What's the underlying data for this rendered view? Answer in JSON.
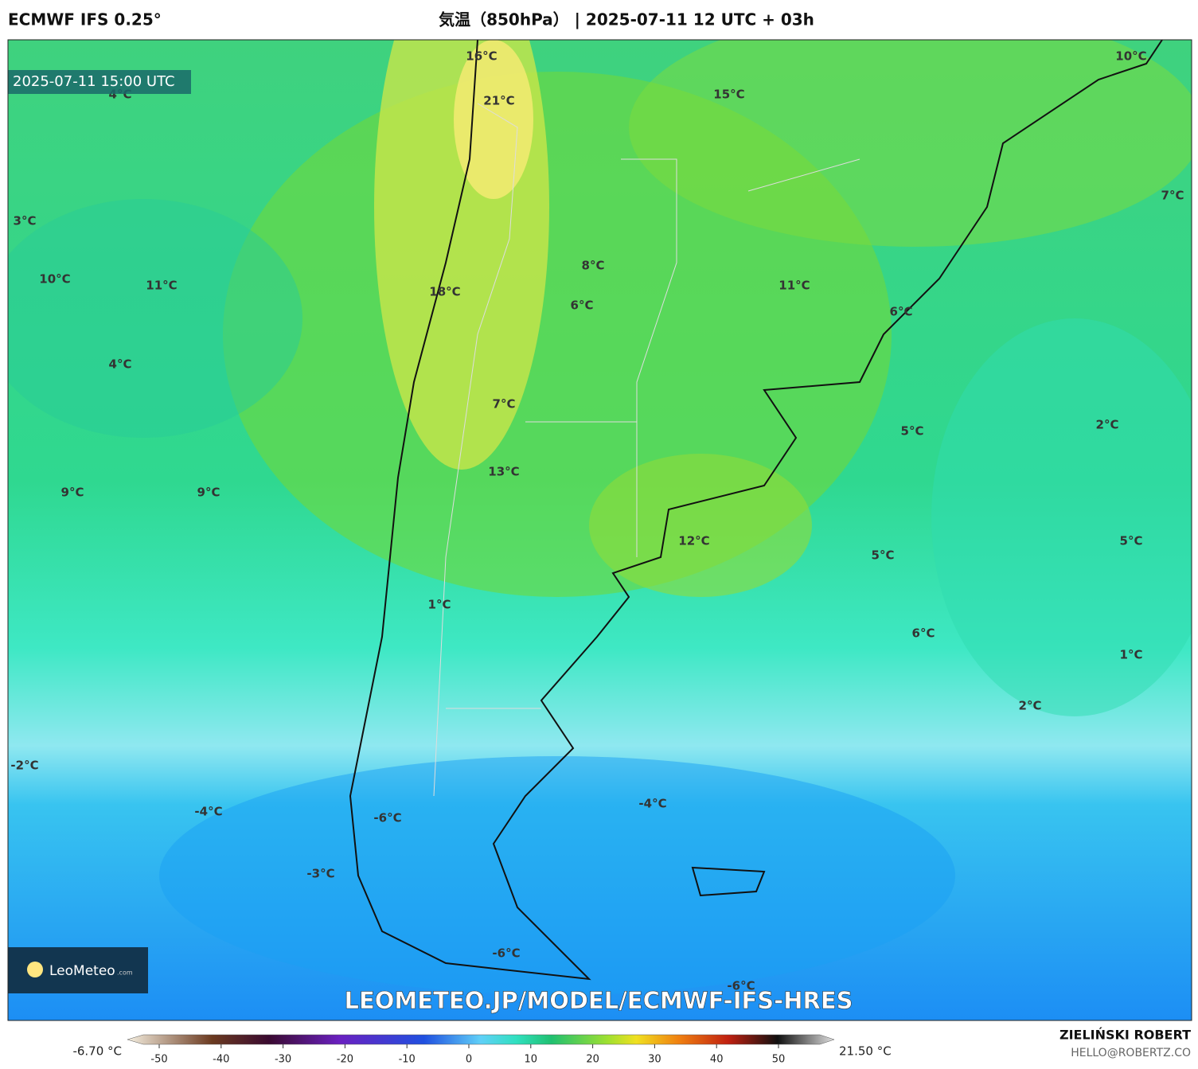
{
  "header": {
    "model": "ECMWF IFS 0.25°",
    "title": "気温（850hPa） | 2025-07-11 12 UTC + 03h"
  },
  "map": {
    "valid_time": "2025-07-11 15:00 UTC",
    "labels": [
      "16°C",
      "4°C",
      "21°C",
      "15°C",
      "10°C",
      "7°C",
      "3°C",
      "10°C",
      "11°C",
      "18°C",
      "8°C",
      "6°C",
      "11°C",
      "6°C",
      "4°C",
      "7°C",
      "5°C",
      "2°C",
      "9°C",
      "9°C",
      "13°C",
      "12°C",
      "5°C",
      "5°C",
      "1°C",
      "6°C",
      "1°C",
      "2°C",
      "-2°C",
      "-4°C",
      "-4°C",
      "-6°C",
      "-3°C",
      "-6°C",
      "-6°C"
    ],
    "watermark": "LEOMETEO.JP/MODEL/ECMWF-IFS-HRES",
    "logo": {
      "name": "LeoMeteo",
      "suffix": ".com"
    }
  },
  "colorbar": {
    "min_label": "-6.70 °C",
    "max_label": "21.50 °C",
    "ticks": [
      -50,
      -40,
      -30,
      -20,
      -10,
      0,
      10,
      20,
      30,
      40,
      50
    ]
  },
  "footer": {
    "author": "ZIELIŃSKI ROBERT",
    "contact": "HELLO@ROBERTZ.CO"
  }
}
